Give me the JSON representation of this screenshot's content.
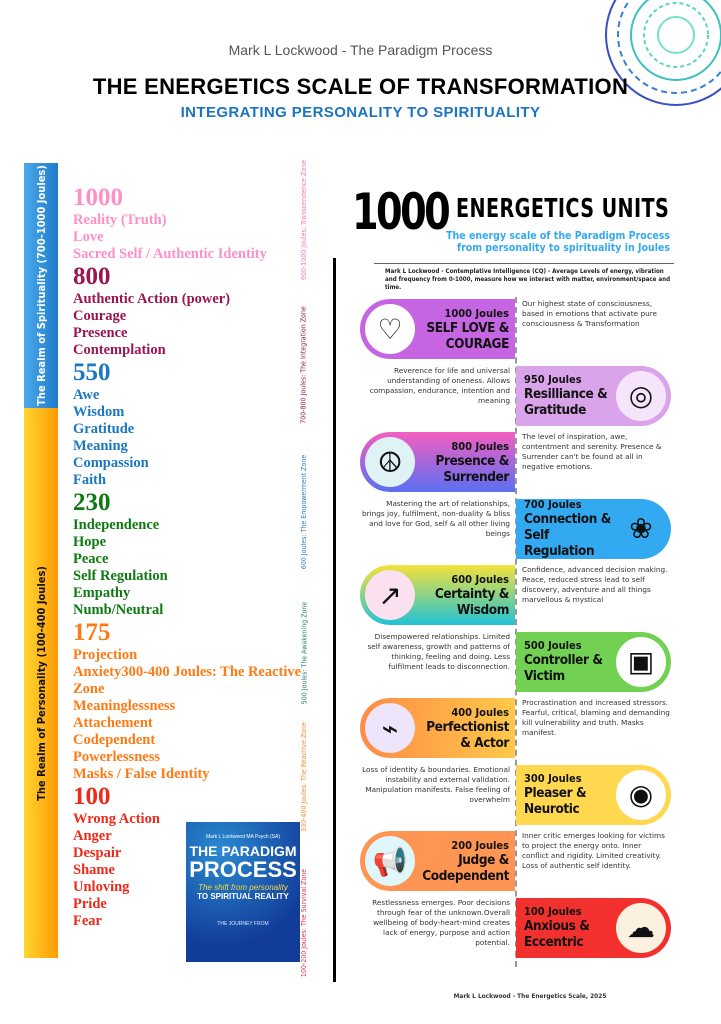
{
  "header": {
    "author": "Mark L Lockwood - The Paradigm Process",
    "title": "THE ENERGETICS SCALE OF TRANSFORMATION",
    "subtitle": "INTEGRATING PERSONALITY TO SPIRITUALITY"
  },
  "realms": {
    "spirituality": "The Realm of Spirituality (700-1000 Joules)",
    "personality": "The Realm of Personality (100-400 Joules)"
  },
  "levels": [
    {
      "value": "1000",
      "color": "#ff8fc8",
      "items": [
        "Reality (Truth)",
        "Love",
        "Sacred Self / Authentic Identity"
      ]
    },
    {
      "value": "800",
      "color": "#9a1552",
      "items": [
        "Authentic Action (power)",
        "Courage",
        "Presence",
        "Contemplation"
      ]
    },
    {
      "value": "550",
      "color": "#1b78c2",
      "items": [
        "Awe",
        "Wisdom",
        "Gratitude",
        "Meaning",
        "Compassion",
        "Faith"
      ]
    },
    {
      "value": "230",
      "color": "#0e7a12",
      "items": [
        "Independence",
        "Hope",
        "Peace",
        "Self Regulation",
        "Empathy",
        "Numb/Neutral"
      ]
    },
    {
      "value": "175",
      "color": "#ff7a12",
      "items": [
        "Projection",
        "Anxiety300-400 Joules: The Reactive Zone",
        "Meaninglessness",
        "Attachement",
        "Codependent",
        "Powerlessness",
        "Masks / False Identity"
      ]
    },
    {
      "value": "100",
      "color": "#ee2a1a",
      "items": [
        "Wrong Action",
        "Anger",
        "Despair",
        "Shame",
        "Unloving",
        "Pride",
        "Fear"
      ]
    }
  ],
  "book": {
    "author": "Mark L Lockwood MA Psych (SA)",
    "title_line1": "THE PARADIGM",
    "title_line2": "PROCESS",
    "tagline": "The shift from personality",
    "tagline2": "TO SPIRITUAL REALITY",
    "footer": "THE JOURNEY FROM"
  },
  "zones": [
    {
      "label": "900-1000 Joules: Transcendence Zone",
      "color": "#ff6fb5"
    },
    {
      "label": "700-800 Joules: The Integration Zone",
      "color": "#8b1a4a"
    },
    {
      "label": "600 Joules: The Empowerment Zone",
      "color": "#2a7fc8"
    },
    {
      "label": "500 Joules: The Awakening Zone",
      "color": "#2a7a7a"
    },
    {
      "label": "300-400 Joules: The Reactive Zone",
      "color": "#ff8a30"
    },
    {
      "label": "100-200 Joules: The Survival Zone",
      "color": "#e83040"
    }
  ],
  "panel": {
    "big_number": "1000",
    "units": "ENERGETICS UNITS",
    "tagline_line1": "The energy scale of the Paradigm Process",
    "tagline_line2": "from personality to spirituality in Joules",
    "intro": "Mark L Lockwood - Contemplative Intelligence (CQ) -  Average Levels of energy, vibration and frequency from 0-1000, measure how we interact with matter, environment/space and time.",
    "rows": [
      {
        "side": "left",
        "joules": "1000 Joules",
        "title": "SELF LOVE & COURAGE",
        "icon": "heart-icon",
        "glyph": "♡",
        "bg": "#c665e2",
        "icon_bg": "#ffffff",
        "desc": "Our highest state of consciousness, based in emotions that activate pure consciousness & Transformation"
      },
      {
        "side": "right",
        "joules": "950 Joules",
        "title": "Resilliance & Gratitude",
        "icon": "spiral-head-icon",
        "glyph": "◎",
        "bg": "#d9a4ea",
        "icon_bg": "#f6e4fb",
        "desc": "Reverence for life and universal understanding of oneness. Allows compassion, endurance, intention and meaning"
      },
      {
        "side": "left",
        "joules": "800 Joules",
        "title": "Presence & Surrender",
        "icon": "peace-icon",
        "glyph": "☮",
        "bg": "linear-gradient(180deg,#f45fc0,#5a6ff2)",
        "icon_bg": "#dff3f6",
        "desc": "The level of inspiration, awe, contentment and serenity. Presence & Surrender can't be found at all in negative emotions."
      },
      {
        "side": "right",
        "joules": "700 Joules",
        "title": "Connection & Self Regulation",
        "icon": "lotus-icon",
        "glyph": "❀",
        "bg": "#33a9f2",
        "icon_bg": "transparent",
        "desc": "Mastering the art of relationships, brings joy, fulfilment, non-duality & bliss and love for God, self & all other living  beings"
      },
      {
        "side": "left",
        "joules": "600 Joules",
        "title": "Certainty & Wisdom",
        "icon": "growth-chart-icon",
        "glyph": "↗",
        "bg": "linear-gradient(180deg,#f5e23a,#1fc2d6)",
        "icon_bg": "#fbe1ef",
        "desc": "Confidence, advanced decision making. Peace, reduced stress lead to self discovery, adventure and all things marvellous & mystical"
      },
      {
        "side": "right",
        "joules": "500 Joules",
        "title": "Controller & Victim",
        "icon": "screen-person-icon",
        "glyph": "▣",
        "bg": "#72d152",
        "icon_bg": "#ffffff",
        "desc": "Disempowered relationships. Limited self awareness, growth and  patterns of thinking, feeling and doing. Less fulfilment leads to disconnection."
      },
      {
        "side": "left",
        "joules": "400 Joules",
        "title": "Perfectionist & Actor",
        "icon": "heartbeat-monitor-icon",
        "glyph": "⌁",
        "bg": "linear-gradient(90deg,#ff8a45,#ffc94a)",
        "icon_bg": "#eee4fb",
        "desc": "Procrastination and increased stressors. Fearful, critical, blaming and demanding kill vulnerability and truth. Masks manifest."
      },
      {
        "side": "right",
        "joules": "300 Joules",
        "title": "Pleaser & Neurotic",
        "icon": "eye-icon",
        "glyph": "◉",
        "bg": "#ffd84f",
        "icon_bg": "#ffffff",
        "desc": "Loss of identity & boundaries. Emotional instability and external validation. Manipulation manifests. False feeling of overwhelm"
      },
      {
        "side": "left",
        "joules": "200 Joules",
        "title": "Judge & Codependent",
        "icon": "megaphone-icon",
        "glyph": "📢",
        "bg": "#ff9552",
        "icon_bg": "#dff7fb",
        "desc": "Inner critic emerges looking for victims to project the energy onto. Inner conflict and rigidity. Limited creativity. Loss of authentic self identity."
      },
      {
        "side": "right",
        "joules": "100 Joules",
        "title": "Anxious & Eccentric",
        "icon": "brain-icon",
        "glyph": "☁",
        "bg": "#f2312e",
        "icon_bg": "#fbf1de",
        "desc": "Restlessness emerges. Poor decisions through fear of the unknown.Overall wellbeing of body-heart-mind creates lack of energy, purpose and action potential."
      }
    ]
  },
  "footer": "Mark L Lockwood - The Energetics Scale, 2025"
}
